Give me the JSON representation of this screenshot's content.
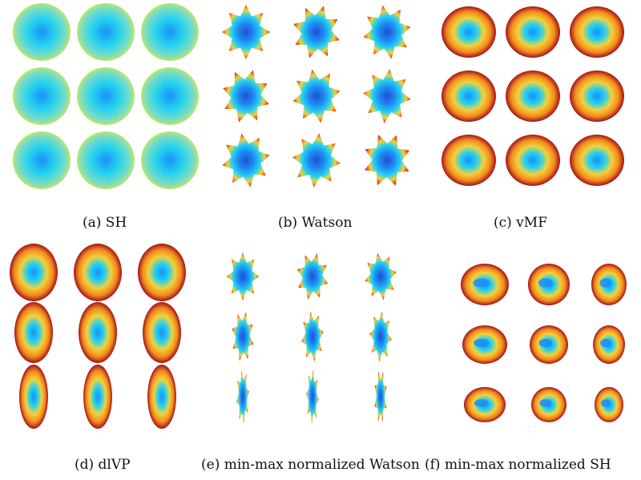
{
  "figure": {
    "panels": [
      {
        "id": "a",
        "caption": "(a) SH",
        "style": "flat"
      },
      {
        "id": "b",
        "caption": "(b) Watson",
        "style": "star"
      },
      {
        "id": "c",
        "caption": "(c) vMF",
        "style": "ring"
      },
      {
        "id": "d",
        "caption": "(d) dlVP",
        "style": "ring-elongated"
      },
      {
        "id": "e",
        "caption": "(e) min-max normalized Watson",
        "style": "thin-star"
      },
      {
        "id": "f",
        "caption": "(f) min-max normalized SH",
        "style": "smooth-peanut"
      }
    ],
    "colormap": [
      "#1d4fd6",
      "#1f8ef2",
      "#23d1f2",
      "#b8e86a",
      "#f2d23a",
      "#f28a1e",
      "#d7301f",
      "#a3131a"
    ]
  }
}
